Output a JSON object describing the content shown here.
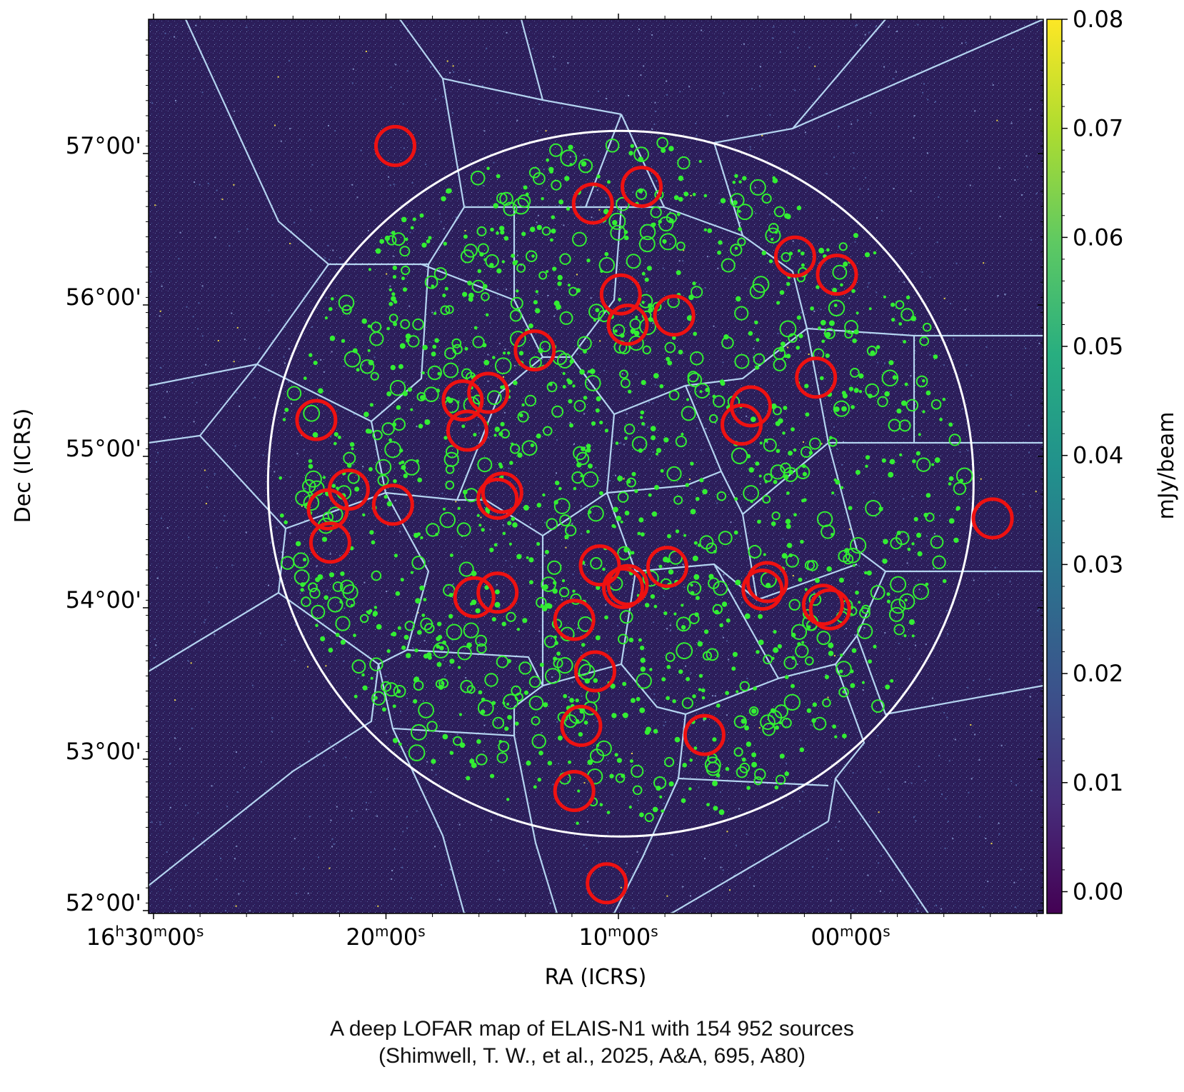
{
  "chart_data": {
    "type": "scatter",
    "xlabel": "RA (ICRS)",
    "ylabel": "Dec (ICRS)",
    "x_tick_labels": [
      {
        "h": "16",
        "m": "30",
        "s": "00",
        "show_hours": true
      },
      {
        "m": "20",
        "s": "00"
      },
      {
        "m": "10",
        "s": "00"
      },
      {
        "m": "00",
        "s": "00"
      }
    ],
    "x_ticks_minutes": [
      30,
      20,
      10,
      0
    ],
    "y_ticks_deg": [
      52,
      53,
      54,
      55,
      56,
      57
    ],
    "y_tick_labels": [
      "52°00'",
      "53°00'",
      "54°00'",
      "55°00'",
      "56°00'",
      "57°00'"
    ],
    "colorbar": {
      "label": "mJy/beam",
      "range": [
        -0.002,
        0.08
      ],
      "ticks": [
        0.0,
        0.01,
        0.02,
        0.03,
        0.04,
        0.05,
        0.06,
        0.07,
        0.08
      ],
      "tick_labels": [
        "0.00",
        "0.01",
        "0.02",
        "0.03",
        "0.04",
        "0.05",
        "0.06",
        "0.07",
        "0.08"
      ],
      "colormap": "viridis"
    },
    "background_color": "#2c1e5a",
    "colors": {
      "field_boundary": "#ffffff",
      "facets": "#b4d4f0",
      "bright_sources": "#ee1111",
      "sources": "#33ee33"
    },
    "field": {
      "center_ra_min": 9.9,
      "center_dec": 54.82,
      "radius_deg": 2.33
    },
    "bright_sources": [
      {
        "ra_min": 19.6,
        "dec": 57.05
      },
      {
        "ra_min": 11.1,
        "dec": 56.67
      },
      {
        "ra_min": 9.0,
        "dec": 56.78
      },
      {
        "ra_min": 2.4,
        "dec": 56.32
      },
      {
        "ra_min": 0.6,
        "dec": 56.2
      },
      {
        "ra_min": 9.9,
        "dec": 56.07
      },
      {
        "ra_min": 7.6,
        "dec": 55.93
      },
      {
        "ra_min": 9.6,
        "dec": 55.87
      },
      {
        "ra_min": 13.6,
        "dec": 55.7
      },
      {
        "ra_min": 1.5,
        "dec": 55.52
      },
      {
        "ra_min": 15.6,
        "dec": 55.42
      },
      {
        "ra_min": 16.7,
        "dec": 55.37
      },
      {
        "ra_min": 16.5,
        "dec": 55.17
      },
      {
        "ra_min": 4.3,
        "dec": 55.33
      },
      {
        "ra_min": 4.7,
        "dec": 55.21
      },
      {
        "ra_min": 23.0,
        "dec": 55.24
      },
      {
        "ra_min": 21.6,
        "dec": 54.78
      },
      {
        "ra_min": 22.5,
        "dec": 54.65
      },
      {
        "ra_min": 19.7,
        "dec": 54.68
      },
      {
        "ra_min": 15.0,
        "dec": 54.76
      },
      {
        "ra_min": 15.2,
        "dec": 54.72
      },
      {
        "ra_min": 22.4,
        "dec": 54.43
      },
      {
        "ra_min": 10.8,
        "dec": 54.28
      },
      {
        "ra_min": 7.9,
        "dec": 54.27
      },
      {
        "ra_min": 9.6,
        "dec": 54.15
      },
      {
        "ra_min": 9.8,
        "dec": 54.13
      },
      {
        "ra_min": 3.6,
        "dec": 54.17
      },
      {
        "ra_min": 3.8,
        "dec": 54.12
      },
      {
        "ra_min": 1.2,
        "dec": 54.02
      },
      {
        "ra_min": 0.9,
        "dec": 53.99
      },
      {
        "ra_min": 15.2,
        "dec": 54.1
      },
      {
        "ra_min": 16.2,
        "dec": 54.07
      },
      {
        "ra_min": 11.9,
        "dec": 53.92
      },
      {
        "ra_min": 11.0,
        "dec": 53.58
      },
      {
        "ra_min": 11.6,
        "dec": 53.22
      },
      {
        "ra_min": 6.3,
        "dec": 53.16
      },
      {
        "ra_min": 11.9,
        "dec": 52.79
      },
      {
        "ra_min": 10.5,
        "dec": 52.18
      },
      {
        "ra_min": -6.1,
        "dec": 54.59
      }
    ]
  },
  "caption": {
    "line1": "A deep LOFAR map of ELAIS-N1 with 154 952 sources",
    "line2": "(Shimwell, T. W., et al., 2025, A&A, 695, A80)"
  }
}
